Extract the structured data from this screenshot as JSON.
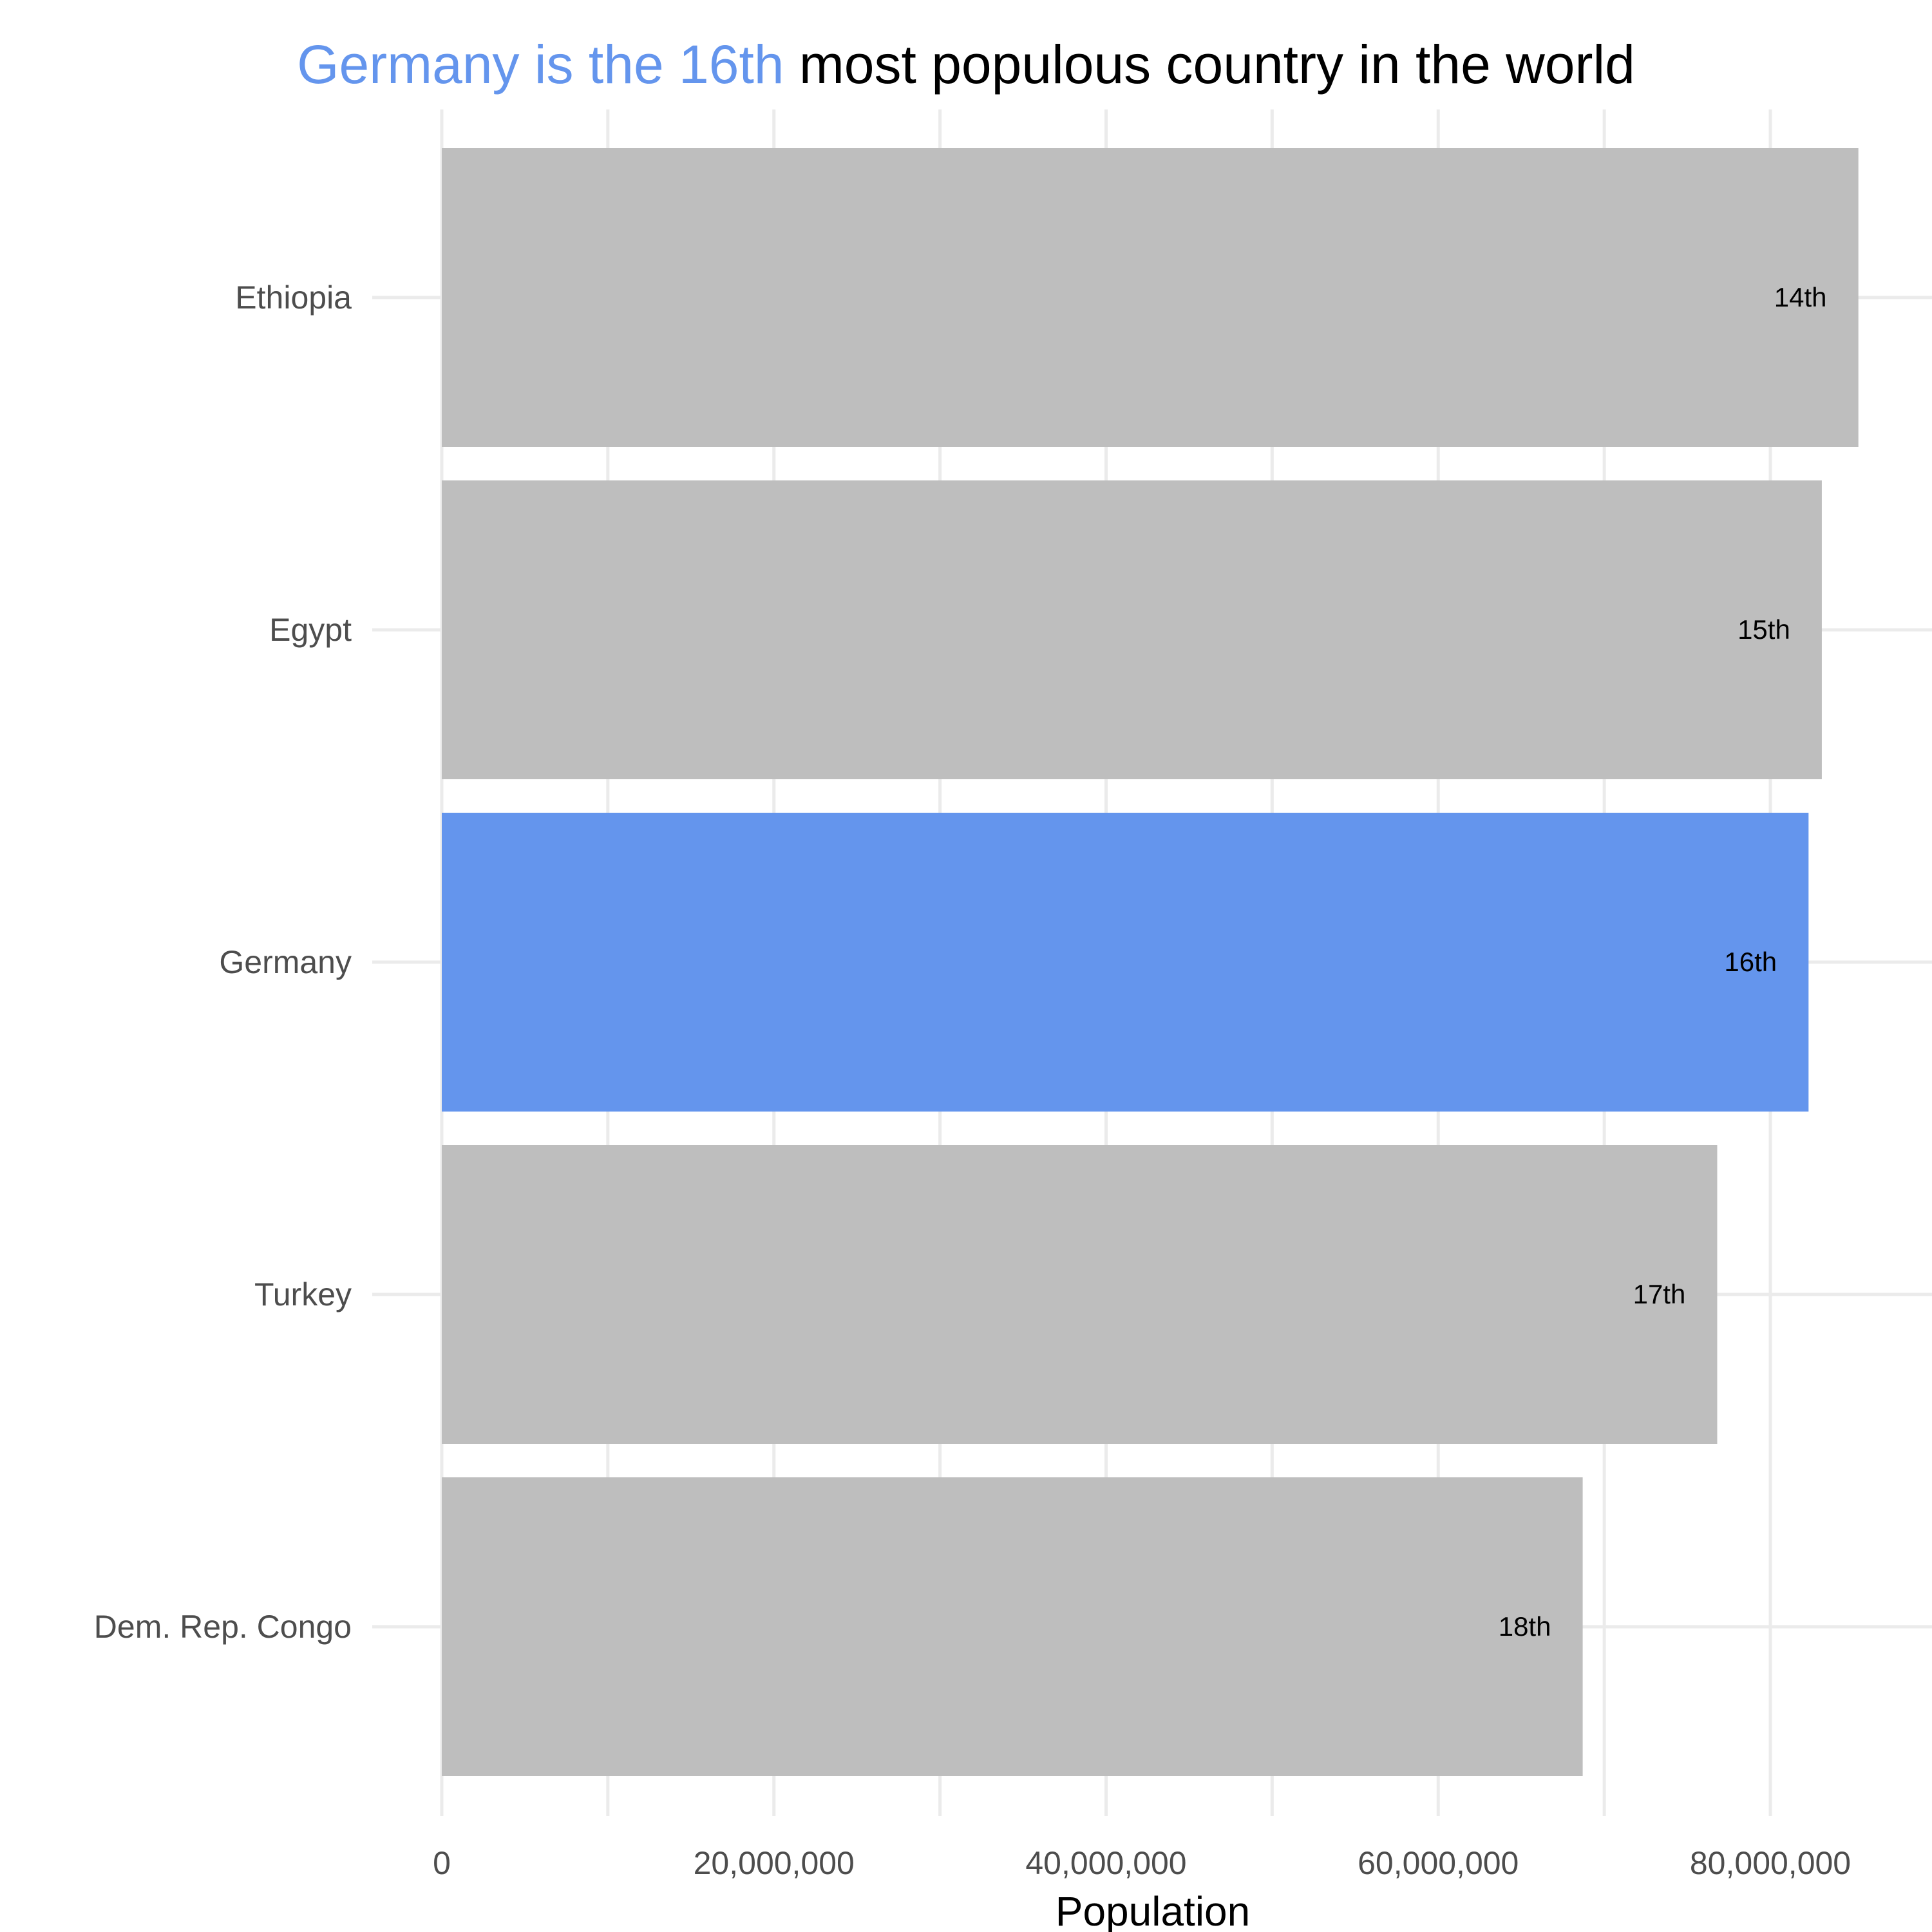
{
  "title": {
    "highlight": "Germany is the 16th",
    "rest": " most populous country in the world"
  },
  "colors": {
    "highlight": "#6495ED",
    "bar": "#BEBEBE",
    "grid": "#EBEBEB",
    "tick_text": "#4D4D4D"
  },
  "chart_data": {
    "type": "bar",
    "orientation": "horizontal",
    "categories": [
      "Ethiopia",
      "Egypt",
      "Germany",
      "Turkey",
      "Dem. Rep. Congo"
    ],
    "values": [
      85300000,
      83100000,
      82300000,
      76800000,
      68700000
    ],
    "bar_labels": [
      "14th",
      "15th",
      "16th",
      "17th",
      "18th"
    ],
    "highlight": "Germany",
    "xlabel": "Population",
    "ylabel": "",
    "xlim": [
      0,
      89000000
    ],
    "xticks": [
      0,
      20000000,
      40000000,
      60000000,
      80000000
    ],
    "xtick_labels": [
      "0",
      "20,000,000",
      "40,000,000",
      "60,000,000",
      "80,000,000"
    ],
    "grid": true,
    "legend": "none"
  }
}
